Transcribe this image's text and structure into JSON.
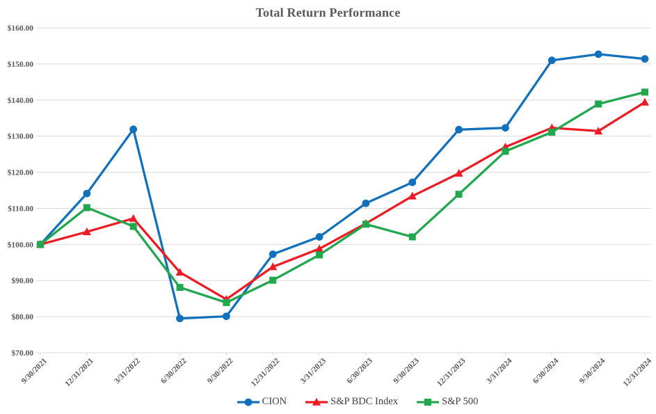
{
  "chart_data": {
    "type": "line",
    "title": "Total Return Performance",
    "categories": [
      "9/30/2021",
      "12/31/2021",
      "3/31/2022",
      "6/30/2022",
      "9/30/2022",
      "12/31/2022",
      "3/31/2023",
      "6/30/2023",
      "9/30/2023",
      "12/31/2023",
      "3/31/2024",
      "6/30/2024",
      "9/30/2024",
      "12/31/2024"
    ],
    "series": [
      {
        "name": "CION",
        "color": "#1371BC",
        "marker": "circle",
        "values": [
          100.0,
          114.1,
          131.9,
          79.5,
          80.1,
          97.3,
          102.1,
          111.4,
          117.2,
          131.8,
          132.3,
          151.0,
          152.7,
          151.4
        ]
      },
      {
        "name": "S&P BDC Index",
        "color": "#ED1C24",
        "marker": "triangle",
        "values": [
          100.0,
          103.5,
          107.2,
          92.3,
          84.8,
          93.8,
          98.8,
          105.8,
          113.4,
          119.7,
          127.0,
          132.3,
          131.4,
          139.4
        ]
      },
      {
        "name": "S&P 500",
        "color": "#21A74D",
        "marker": "square",
        "values": [
          100.0,
          110.2,
          105.0,
          88.1,
          83.9,
          90.1,
          97.1,
          105.6,
          102.1,
          113.9,
          125.8,
          131.1,
          138.9,
          142.2
        ]
      }
    ],
    "y_axis": {
      "min": 70,
      "max": 160,
      "step": 10,
      "tick_labels_top_to_bottom": [
        "$160.00",
        "$150.00",
        "$140.00",
        "$130.00",
        "$120.00",
        "$110.00",
        "$100.00",
        "$90.00",
        "$80.00",
        "$70.00"
      ]
    },
    "grid": true,
    "legend_position": "bottom",
    "xlabel": "",
    "ylabel": ""
  },
  "styles": {
    "grid_color": "#D9D9D9",
    "axis_text_color": "#595959",
    "title_color": "#595959",
    "legend_text_color": "#3f3f3f"
  }
}
